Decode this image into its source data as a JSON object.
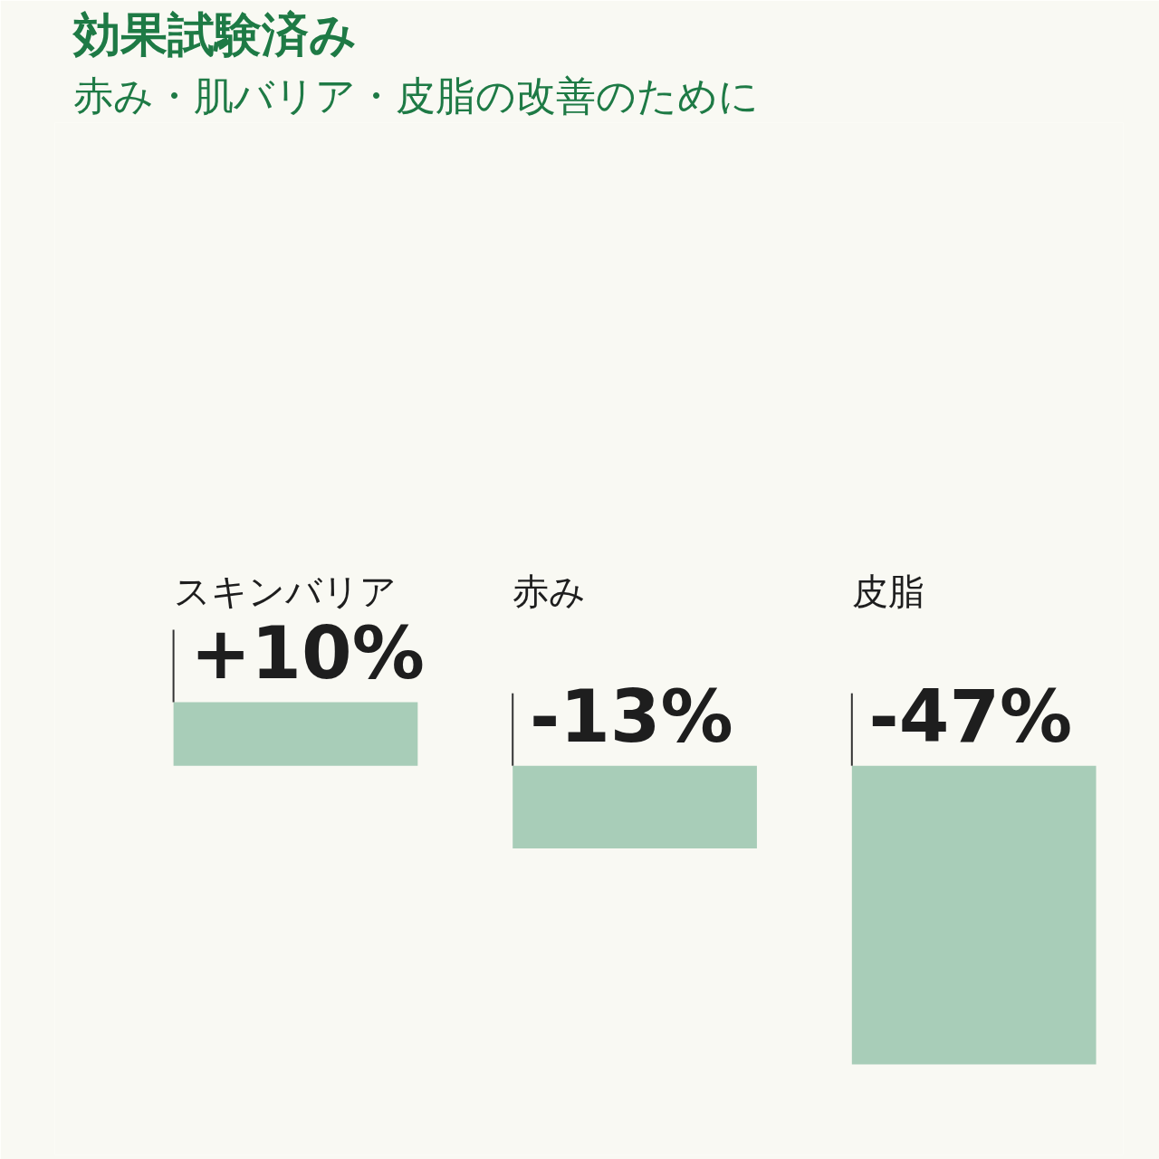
{
  "chart_data": {
    "type": "bar",
    "title": "効果試験済み",
    "subtitle": "赤み・肌バリア・皮脂の改善のために",
    "categories": [
      "スキンバリア",
      "赤み",
      "皮脂"
    ],
    "values": [
      10,
      -13,
      -47
    ],
    "value_labels": [
      "+10%",
      "-13%",
      "-47%"
    ],
    "color": "#a8cdb8",
    "grid": false,
    "tick_labels": false
  }
}
